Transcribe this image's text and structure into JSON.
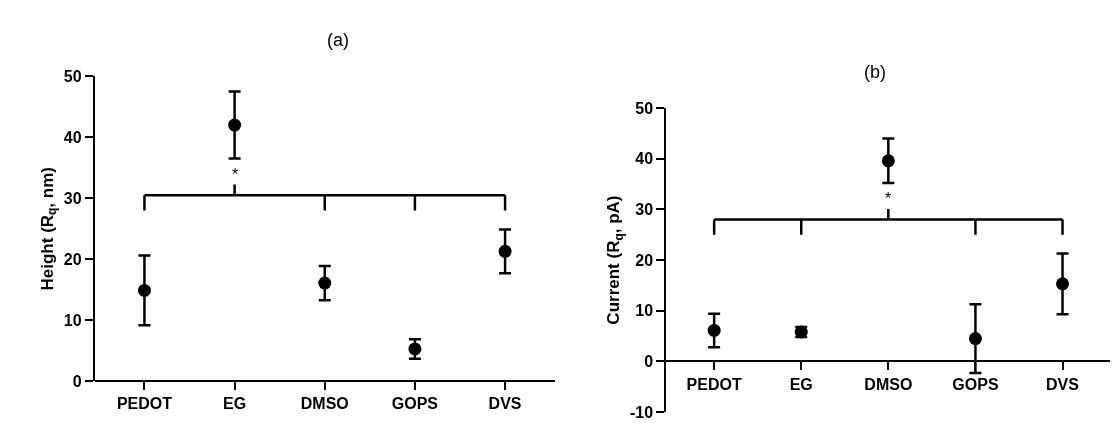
{
  "chart_data": [
    {
      "type": "scatter",
      "title": "(a)",
      "ylabel": "Height (R$_{q}$, nm)",
      "categories": [
        "PEDOT",
        "EG",
        "DMSO",
        "GOPS",
        "DVS"
      ],
      "series": [
        {
          "color": "#000000",
          "values": [
            14.9,
            42.0,
            16.1,
            5.3,
            21.3
          ],
          "errors": [
            5.7,
            5.5,
            2.8,
            1.6,
            3.6
          ]
        }
      ],
      "ylim": [
        0,
        50
      ],
      "yticks": [
        0,
        10,
        20,
        30,
        40,
        50
      ],
      "marker": "circle",
      "annotations": [
        "*"
      ]
    },
    {
      "type": "scatter",
      "title": "(b)",
      "ylabel": "Current (R$_{q}$, pA)",
      "categories": [
        "PEDOT",
        "EG",
        "DMSO",
        "GOPS",
        "DVS"
      ],
      "series": [
        {
          "color": "#000000",
          "values": [
            6.1,
            5.8,
            39.6,
            4.5,
            15.3
          ],
          "errors": [
            3.3,
            1.0,
            4.4,
            6.8,
            6.0
          ]
        }
      ],
      "ylim": [
        -10,
        50
      ],
      "yticks": [
        -10,
        0,
        10,
        20,
        30,
        40,
        50
      ],
      "marker": "circle",
      "annotations": [
        "*"
      ]
    }
  ]
}
